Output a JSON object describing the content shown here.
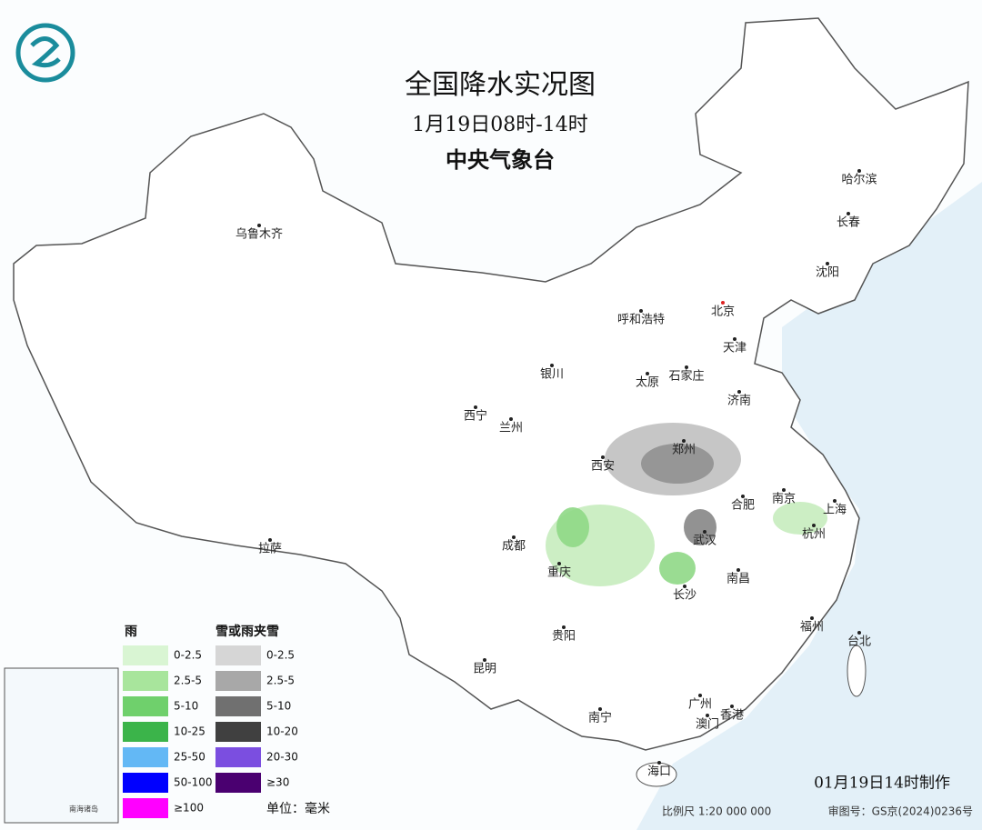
{
  "header": {
    "title": "全国降水实况图",
    "subtitle": "1月19日08时-14时",
    "agency": "中央气象台"
  },
  "cities": [
    "乌鲁木齐",
    "哈尔滨",
    "长春",
    "沈阳",
    "北京",
    "天津",
    "呼和浩特",
    "石家庄",
    "太原",
    "济南",
    "银川",
    "西宁",
    "兰州",
    "郑州",
    "西安",
    "合肥",
    "南京",
    "上海",
    "成都",
    "武汉",
    "杭州",
    "重庆",
    "南昌",
    "长沙",
    "贵阳",
    "福州",
    "台北",
    "昆明",
    "广州",
    "香港",
    "澳门",
    "南宁",
    "海口",
    "拉萨"
  ],
  "inset": {
    "label": "南海诸岛"
  },
  "legend": {
    "rain": {
      "title": "雨",
      "items": [
        {
          "label": "0-2.5",
          "color": "#d9f5d3"
        },
        {
          "label": "2.5-5",
          "color": "#a8e59c"
        },
        {
          "label": "5-10",
          "color": "#6fd06c"
        },
        {
          "label": "10-25",
          "color": "#3bb44a"
        },
        {
          "label": "25-50",
          "color": "#63b8f5"
        },
        {
          "label": "50-100",
          "color": "#0000ff"
        },
        {
          "label": "≥100",
          "color": "#ff00ff"
        }
      ]
    },
    "snow": {
      "title": "雪或雨夹雪",
      "items": [
        {
          "label": "0-2.5",
          "color": "#d6d6d6"
        },
        {
          "label": "2.5-5",
          "color": "#a8a8a8"
        },
        {
          "label": "5-10",
          "color": "#707070"
        },
        {
          "label": "10-20",
          "color": "#404040"
        },
        {
          "label": "20-30",
          "color": "#7b4ee0"
        },
        {
          "label": "≥30",
          "color": "#4a0070"
        }
      ]
    },
    "unit": "单位：毫米"
  },
  "footer": {
    "made": "01月19日14时制作",
    "scale": "比例尺 1:20 000 000",
    "approval": "审图号：GS京(2024)0236号"
  }
}
